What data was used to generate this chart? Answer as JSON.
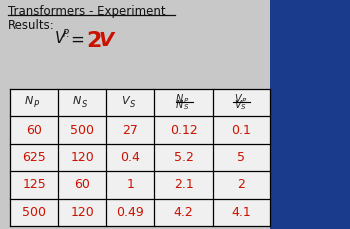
{
  "title": "Transformers - Experiment",
  "bg_color": "#c8c8c8",
  "white_table_bg": "#f0f0f0",
  "blue_box_color": "#1a3a8c",
  "data_color": "#cc1100",
  "header_color": "#222222",
  "title_color": "#111111",
  "col1": [
    "60",
    "625",
    "125",
    "500"
  ],
  "col2": [
    "500",
    "120",
    "60",
    "120"
  ],
  "col3": [
    "27",
    "0.4",
    "1",
    "0.49"
  ],
  "col4": [
    "0.12",
    "5.2",
    "2.1",
    "4.2"
  ],
  "col5": [
    "0.1",
    "5",
    "2",
    "4.1"
  ],
  "figwidth": 3.5,
  "figheight": 2.29,
  "dpi": 100
}
